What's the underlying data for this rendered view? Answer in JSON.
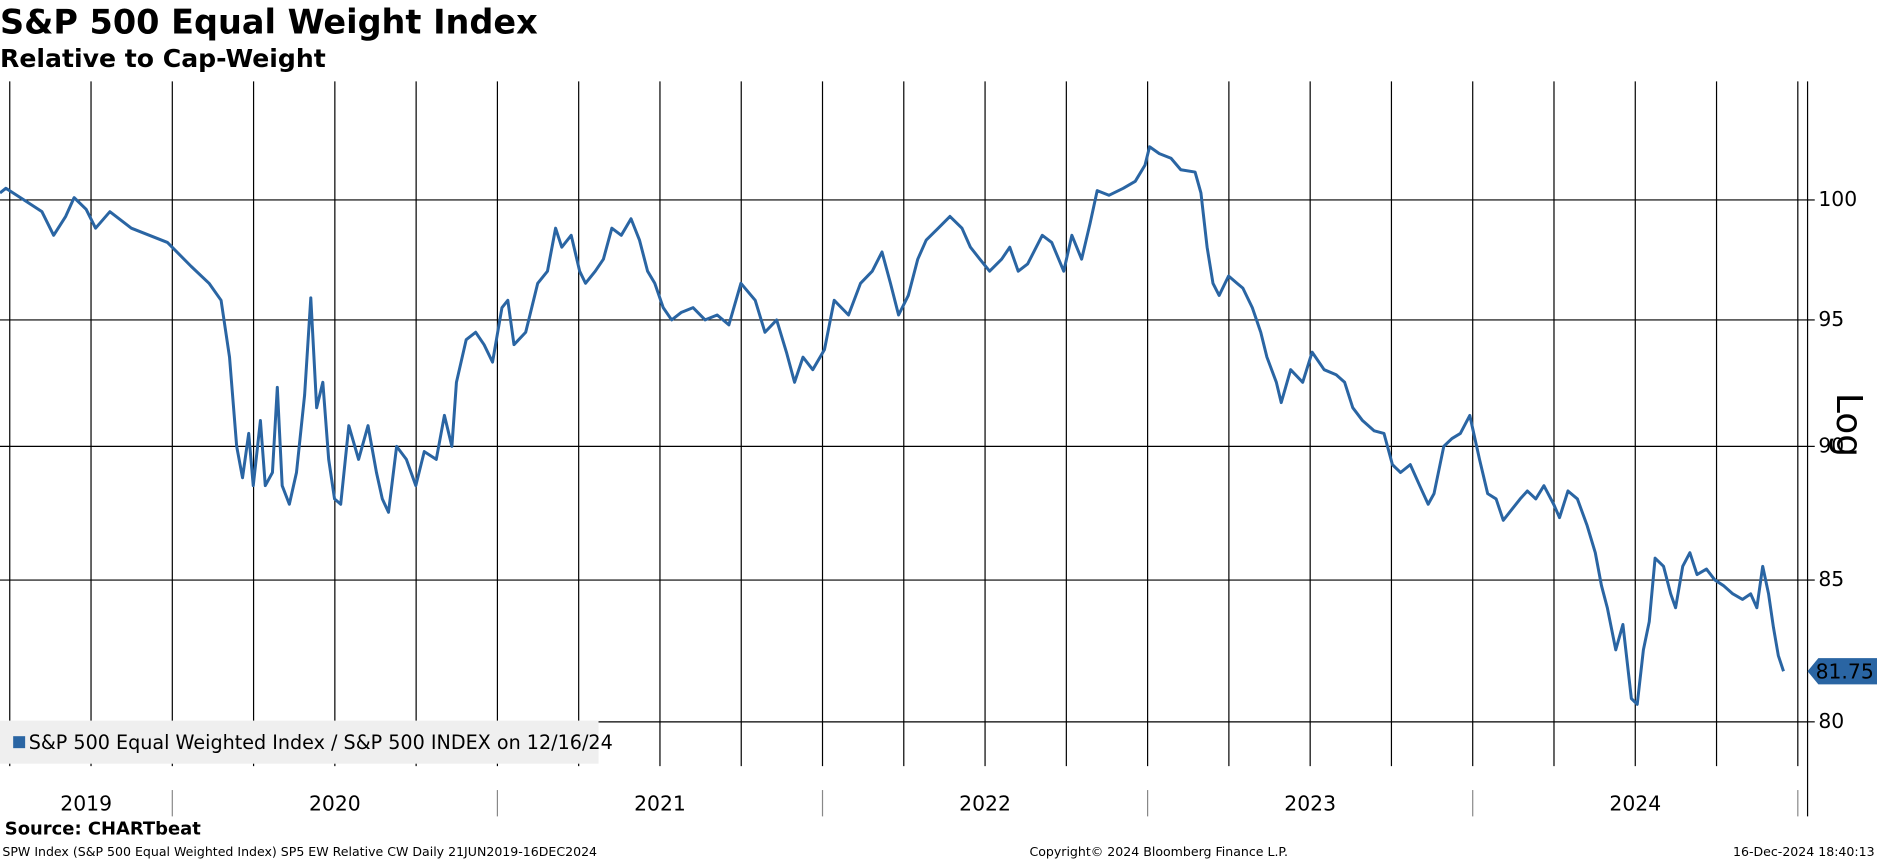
{
  "chart_data": {
    "type": "line",
    "title": "S&P 500 Equal Weight Index",
    "subtitle": "Relative to Cap-Weight",
    "yscale": "log",
    "axis_note": "Log",
    "source": "Source: CHARTbeat",
    "footer_left": "SPW Index (S&P 500 Equal Weighted Index) SP5 EW Relative CW  Daily 21JUN2019-16DEC2024",
    "footer_center": "Copyright© 2024 Bloomberg Finance L.P.",
    "footer_right": "16-Dec-2024 18:40:13",
    "xlim": [
      2019.47,
      2025.03
    ],
    "ylim": [
      78.5,
      105.2
    ],
    "yticks": [
      80,
      85,
      90,
      95,
      100
    ],
    "xticks": [
      2020,
      2021,
      2022,
      2023,
      2024,
      2025
    ],
    "year_labels": [
      "2019",
      "2020",
      "2021",
      "2022",
      "2023",
      "2024"
    ],
    "xgrid": [
      2019.5,
      2019.75,
      2020,
      2020.25,
      2020.5,
      2020.75,
      2021,
      2021.25,
      2021.5,
      2021.75,
      2022,
      2022.25,
      2022.5,
      2022.75,
      2023,
      2023.25,
      2023.5,
      2023.75,
      2024,
      2024.25,
      2024.5,
      2024.75,
      2025
    ],
    "grid": true,
    "legend": "bottom-left",
    "x": [
      2019.47,
      2019.488,
      2019.544,
      2019.599,
      2019.635,
      2019.672,
      2019.698,
      2019.735,
      2019.764,
      2019.808,
      2019.874,
      2019.985,
      2020.058,
      2020.113,
      2020.15,
      2020.176,
      2020.198,
      2020.216,
      2020.235,
      2020.249,
      2020.271,
      2020.286,
      2020.308,
      2020.323,
      2020.338,
      2020.36,
      2020.382,
      2020.407,
      2020.426,
      2020.444,
      2020.463,
      2020.481,
      2020.499,
      2020.518,
      2020.543,
      2020.573,
      2020.602,
      2020.628,
      2020.646,
      2020.665,
      2020.69,
      2020.72,
      2020.749,
      2020.775,
      2020.812,
      2020.837,
      2020.86,
      2020.874,
      2020.904,
      2020.933,
      2020.959,
      2020.985,
      2021.014,
      2021.032,
      2021.051,
      2021.087,
      2021.124,
      2021.154,
      2021.179,
      2021.198,
      2021.227,
      2021.253,
      2021.271,
      2021.301,
      2021.326,
      2021.352,
      2021.381,
      2021.411,
      2021.437,
      2021.462,
      2021.484,
      2021.51,
      2021.536,
      2021.565,
      2021.602,
      2021.639,
      2021.676,
      2021.712,
      2021.749,
      2021.793,
      2021.823,
      2021.859,
      2021.889,
      2021.914,
      2021.94,
      2021.97,
      2022.006,
      2022.036,
      2022.08,
      2022.117,
      2022.153,
      2022.183,
      2022.209,
      2022.234,
      2022.264,
      2022.293,
      2022.319,
      2022.356,
      2022.392,
      2022.429,
      2022.455,
      2022.484,
      2022.514,
      2022.551,
      2022.576,
      2022.602,
      2022.631,
      2022.676,
      2022.705,
      2022.742,
      2022.767,
      2022.797,
      2022.823,
      2022.845,
      2022.881,
      2022.925,
      2022.962,
      2022.992,
      2023.006,
      2023.036,
      2023.072,
      2023.102,
      2023.146,
      2023.164,
      2023.183,
      2023.201,
      2023.22,
      2023.249,
      2023.275,
      2023.293,
      2023.322,
      2023.348,
      2023.367,
      2023.396,
      2023.411,
      2023.44,
      2023.477,
      2023.506,
      2023.543,
      2023.58,
      2023.606,
      2023.631,
      2023.661,
      2023.697,
      2023.727,
      2023.753,
      2023.778,
      2023.808,
      2023.837,
      2023.863,
      2023.881,
      2023.911,
      2023.936,
      2023.962,
      2023.991,
      2024.021,
      2024.046,
      2024.072,
      2024.094,
      2024.12,
      2024.146,
      2024.168,
      2024.194,
      2024.219,
      2024.249,
      2024.267,
      2024.293,
      2024.322,
      2024.352,
      2024.377,
      2024.396,
      2024.414,
      2024.44,
      2024.462,
      2024.488,
      2024.506,
      2024.525,
      2024.543,
      2024.561,
      2024.587,
      2024.609,
      2024.624,
      2024.646,
      2024.668,
      2024.69,
      2024.719,
      2024.745,
      2024.771,
      2024.8,
      2024.83,
      2024.855,
      2024.874,
      2024.892,
      2024.91,
      2024.925,
      2024.94,
      2024.956
    ],
    "series": [
      {
        "name": "S&P 500 Equal Weighted Index / S&P 500 INDEX on 12/16/24",
        "color": "#2a65a3",
        "values": [
          100.3,
          100.5,
          100.0,
          99.5,
          98.5,
          99.3,
          100.1,
          99.6,
          98.8,
          99.5,
          98.8,
          98.2,
          97.2,
          96.5,
          95.8,
          93.5,
          90,
          88.8,
          90.5,
          88.5,
          91,
          88.5,
          89,
          92.3,
          88.5,
          87.8,
          89,
          92,
          95.9,
          91.5,
          92.5,
          89.5,
          88,
          87.8,
          90.8,
          89.5,
          90.8,
          89,
          88,
          87.5,
          90,
          89.5,
          88.5,
          89.8,
          89.5,
          91.2,
          90,
          92.5,
          94.2,
          94.5,
          94.0,
          93.3,
          95.5,
          95.8,
          94.0,
          94.5,
          96.5,
          97,
          98.8,
          98.0,
          98.5,
          97,
          96.5,
          97.0,
          97.5,
          98.8,
          98.5,
          99.2,
          98.3,
          97,
          96.5,
          95.5,
          95,
          95.3,
          95.5,
          95,
          95.2,
          94.8,
          96.5,
          95.8,
          94.5,
          95,
          93.7,
          92.5,
          93.5,
          93,
          93.8,
          95.8,
          95.2,
          96.5,
          97.0,
          97.8,
          96.5,
          95.2,
          96.0,
          97.5,
          98.3,
          98.8,
          99.3,
          98.8,
          98.0,
          97.5,
          97.0,
          97.5,
          98.0,
          97.0,
          97.3,
          98.5,
          98.2,
          97.0,
          98.5,
          97.5,
          99.0,
          100.4,
          100.2,
          100.5,
          100.8,
          101.5,
          102.3,
          102.0,
          101.8,
          101.3,
          101.2,
          100.3,
          98,
          96.5,
          96.0,
          96.8,
          96.5,
          96.3,
          95.5,
          94.5,
          93.5,
          92.5,
          91.7,
          93,
          92.5,
          93.7,
          93.0,
          92.8,
          92.5,
          91.5,
          91.0,
          90.6,
          90.5,
          89.3,
          89.0,
          89.3,
          88.5,
          87.8,
          88.2,
          90,
          90.3,
          90.5,
          91.2,
          89.5,
          88.2,
          88.0,
          87.2,
          87.6,
          88.0,
          88.3,
          88.0,
          88.5,
          87.8,
          87.3,
          88.3,
          88.0,
          87.0,
          86.0,
          84.8,
          84.0,
          82.5,
          83.4,
          80.8,
          80.6,
          82.5,
          83.5,
          85.8,
          85.5,
          84.5,
          84.0,
          85.5,
          86.0,
          85.2,
          85.4,
          85.0,
          84.8,
          84.5,
          84.3,
          84.5,
          84.0,
          85.5,
          84.5,
          83.3,
          82.3,
          81.75
        ]
      }
    ]
  }
}
